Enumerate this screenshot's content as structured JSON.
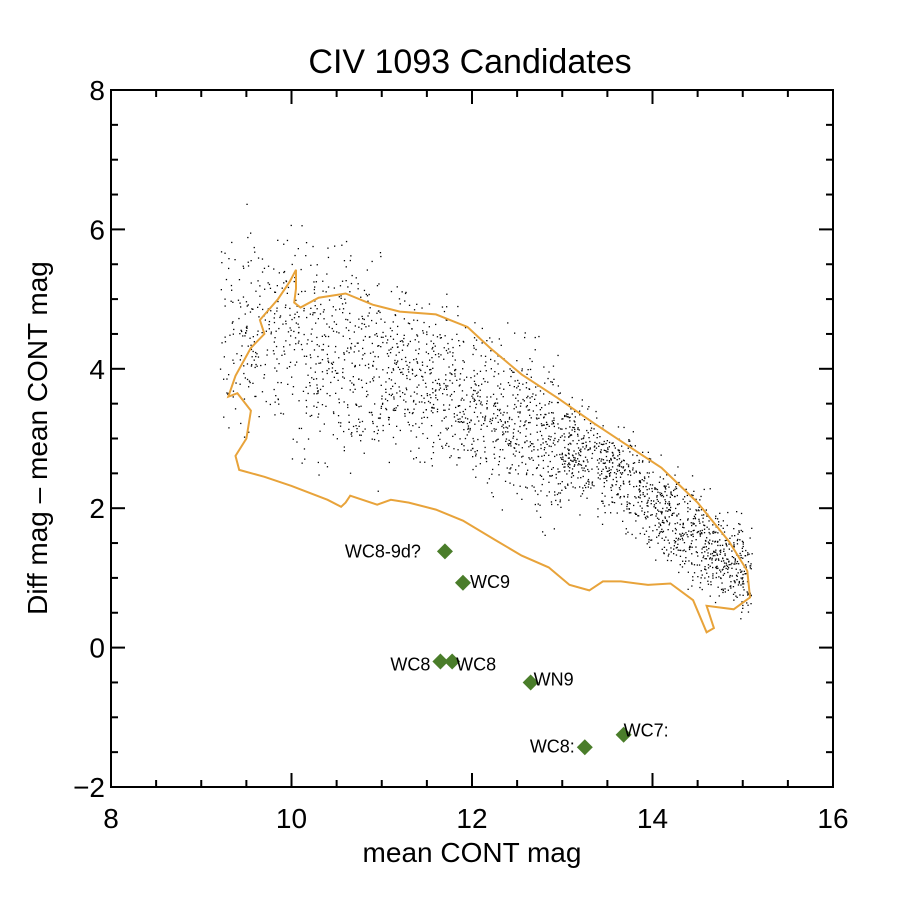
{
  "chart_data": {
    "type": "scatter",
    "title": "CIV 1093 Candidates",
    "xlabel": "mean CONT mag",
    "ylabel": "Diff mag – mean CONT mag",
    "xlim": [
      8,
      16
    ],
    "ylim": [
      -2,
      8
    ],
    "x_ticks": [
      8,
      10,
      12,
      14,
      16
    ],
    "y_ticks": [
      -2,
      0,
      2,
      4,
      6,
      8
    ],
    "colors": {
      "background_points": "#000000",
      "contour": "#e8a33a",
      "candidates": "#4a7d2a"
    },
    "background_distribution": {
      "description_role": "field stars",
      "envelope": [
        [
          9.1,
          4.5
        ],
        [
          9.5,
          6.0
        ],
        [
          10.0,
          5.3
        ],
        [
          10.4,
          5.0
        ],
        [
          11.0,
          4.8
        ],
        [
          12.0,
          4.0
        ],
        [
          13.0,
          3.0
        ],
        [
          14.0,
          2.4
        ],
        [
          15.0,
          1.2
        ],
        [
          15.0,
          0.6
        ],
        [
          14.3,
          0.7
        ],
        [
          13.2,
          1.2
        ],
        [
          12.3,
          1.7
        ],
        [
          11.0,
          2.0
        ],
        [
          10.0,
          2.1
        ],
        [
          9.2,
          2.3
        ],
        [
          9.0,
          3.2
        ]
      ],
      "ridge": [
        [
          9.4,
          4.6
        ],
        [
          10.5,
          4.2
        ],
        [
          11.5,
          3.8
        ],
        [
          12.5,
          3.2
        ],
        [
          13.5,
          2.6
        ],
        [
          14.5,
          1.6
        ],
        [
          15.0,
          1.1
        ]
      ],
      "approx_count": 2600
    },
    "contour": [
      [
        9.38,
        2.75
      ],
      [
        9.5,
        3.0
      ],
      [
        9.55,
        3.4
      ],
      [
        9.4,
        3.65
      ],
      [
        9.3,
        3.6
      ],
      [
        9.38,
        3.9
      ],
      [
        9.55,
        4.3
      ],
      [
        9.7,
        4.5
      ],
      [
        9.65,
        4.7
      ],
      [
        9.85,
        5.0
      ],
      [
        9.98,
        5.25
      ],
      [
        10.05,
        5.42
      ],
      [
        10.05,
        5.15
      ],
      [
        10.03,
        4.95
      ],
      [
        10.1,
        4.88
      ],
      [
        10.3,
        5.02
      ],
      [
        10.6,
        5.08
      ],
      [
        10.9,
        4.92
      ],
      [
        11.2,
        4.82
      ],
      [
        11.6,
        4.78
      ],
      [
        11.95,
        4.6
      ],
      [
        12.2,
        4.3
      ],
      [
        12.55,
        3.92
      ],
      [
        12.95,
        3.58
      ],
      [
        13.35,
        3.22
      ],
      [
        13.7,
        2.92
      ],
      [
        14.1,
        2.58
      ],
      [
        14.5,
        2.08
      ],
      [
        14.85,
        1.52
      ],
      [
        15.05,
        1.1
      ],
      [
        15.08,
        0.72
      ],
      [
        14.9,
        0.55
      ],
      [
        14.6,
        0.6
      ],
      [
        14.68,
        0.28
      ],
      [
        14.6,
        0.22
      ],
      [
        14.45,
        0.68
      ],
      [
        14.2,
        0.92
      ],
      [
        13.95,
        0.9
      ],
      [
        13.65,
        0.95
      ],
      [
        13.45,
        0.95
      ],
      [
        13.3,
        0.82
      ],
      [
        13.08,
        0.9
      ],
      [
        12.85,
        1.15
      ],
      [
        12.55,
        1.32
      ],
      [
        12.25,
        1.55
      ],
      [
        11.9,
        1.82
      ],
      [
        11.6,
        1.98
      ],
      [
        11.3,
        2.08
      ],
      [
        11.1,
        2.12
      ],
      [
        10.95,
        2.05
      ],
      [
        10.65,
        2.18
      ],
      [
        10.6,
        2.08
      ],
      [
        10.55,
        2.02
      ],
      [
        10.4,
        2.12
      ],
      [
        10.0,
        2.32
      ],
      [
        9.7,
        2.45
      ],
      [
        9.42,
        2.55
      ],
      [
        9.38,
        2.75
      ]
    ],
    "candidates": [
      {
        "label": "WC8-9d?",
        "x": 11.7,
        "y": 1.38
      },
      {
        "label": "WC9",
        "x": 11.9,
        "y": 0.93
      },
      {
        "label": "WC8",
        "x": 11.65,
        "y": -0.2
      },
      {
        "label": "WC8",
        "x": 11.78,
        "y": -0.2
      },
      {
        "label": "WN9",
        "x": 12.65,
        "y": -0.5
      },
      {
        "label": "WC8:",
        "x": 13.25,
        "y": -1.43
      },
      {
        "label": "WC7:",
        "x": 13.68,
        "y": -1.25
      }
    ]
  }
}
